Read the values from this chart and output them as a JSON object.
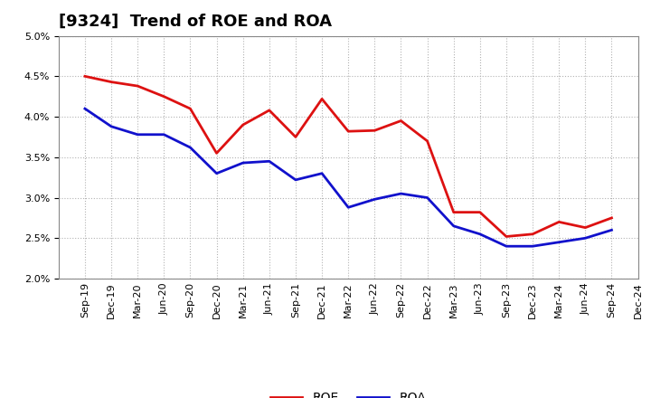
{
  "title": "[9324]  Trend of ROE and ROA",
  "x_labels": [
    "Sep-19",
    "Dec-19",
    "Mar-20",
    "Jun-20",
    "Sep-20",
    "Dec-20",
    "Mar-21",
    "Jun-21",
    "Sep-21",
    "Dec-21",
    "Mar-22",
    "Jun-22",
    "Sep-22",
    "Dec-22",
    "Mar-23",
    "Jun-23",
    "Sep-23",
    "Dec-23",
    "Mar-24",
    "Jun-24",
    "Sep-24",
    "Dec-24"
  ],
  "roe": [
    4.5,
    4.43,
    4.38,
    4.25,
    4.1,
    3.55,
    3.9,
    4.08,
    3.75,
    4.22,
    3.82,
    3.83,
    3.95,
    3.7,
    2.82,
    2.82,
    2.52,
    2.55,
    2.7,
    2.63,
    2.75,
    null
  ],
  "roa": [
    4.1,
    3.88,
    3.78,
    3.78,
    3.62,
    3.3,
    3.43,
    3.45,
    3.22,
    3.3,
    2.88,
    2.98,
    3.05,
    3.0,
    2.65,
    2.55,
    2.4,
    2.4,
    2.45,
    2.5,
    2.6,
    null
  ],
  "roe_color": "#dd1111",
  "roa_color": "#1111cc",
  "ylim": [
    2.0,
    5.0
  ],
  "yticks": [
    2.0,
    2.5,
    3.0,
    3.5,
    4.0,
    4.5,
    5.0
  ],
  "background_color": "#ffffff",
  "plot_bg_color": "#ffffff",
  "grid_color": "#aaaaaa",
  "line_width": 2.0,
  "title_fontsize": 13,
  "tick_fontsize": 8,
  "legend_fontsize": 10
}
